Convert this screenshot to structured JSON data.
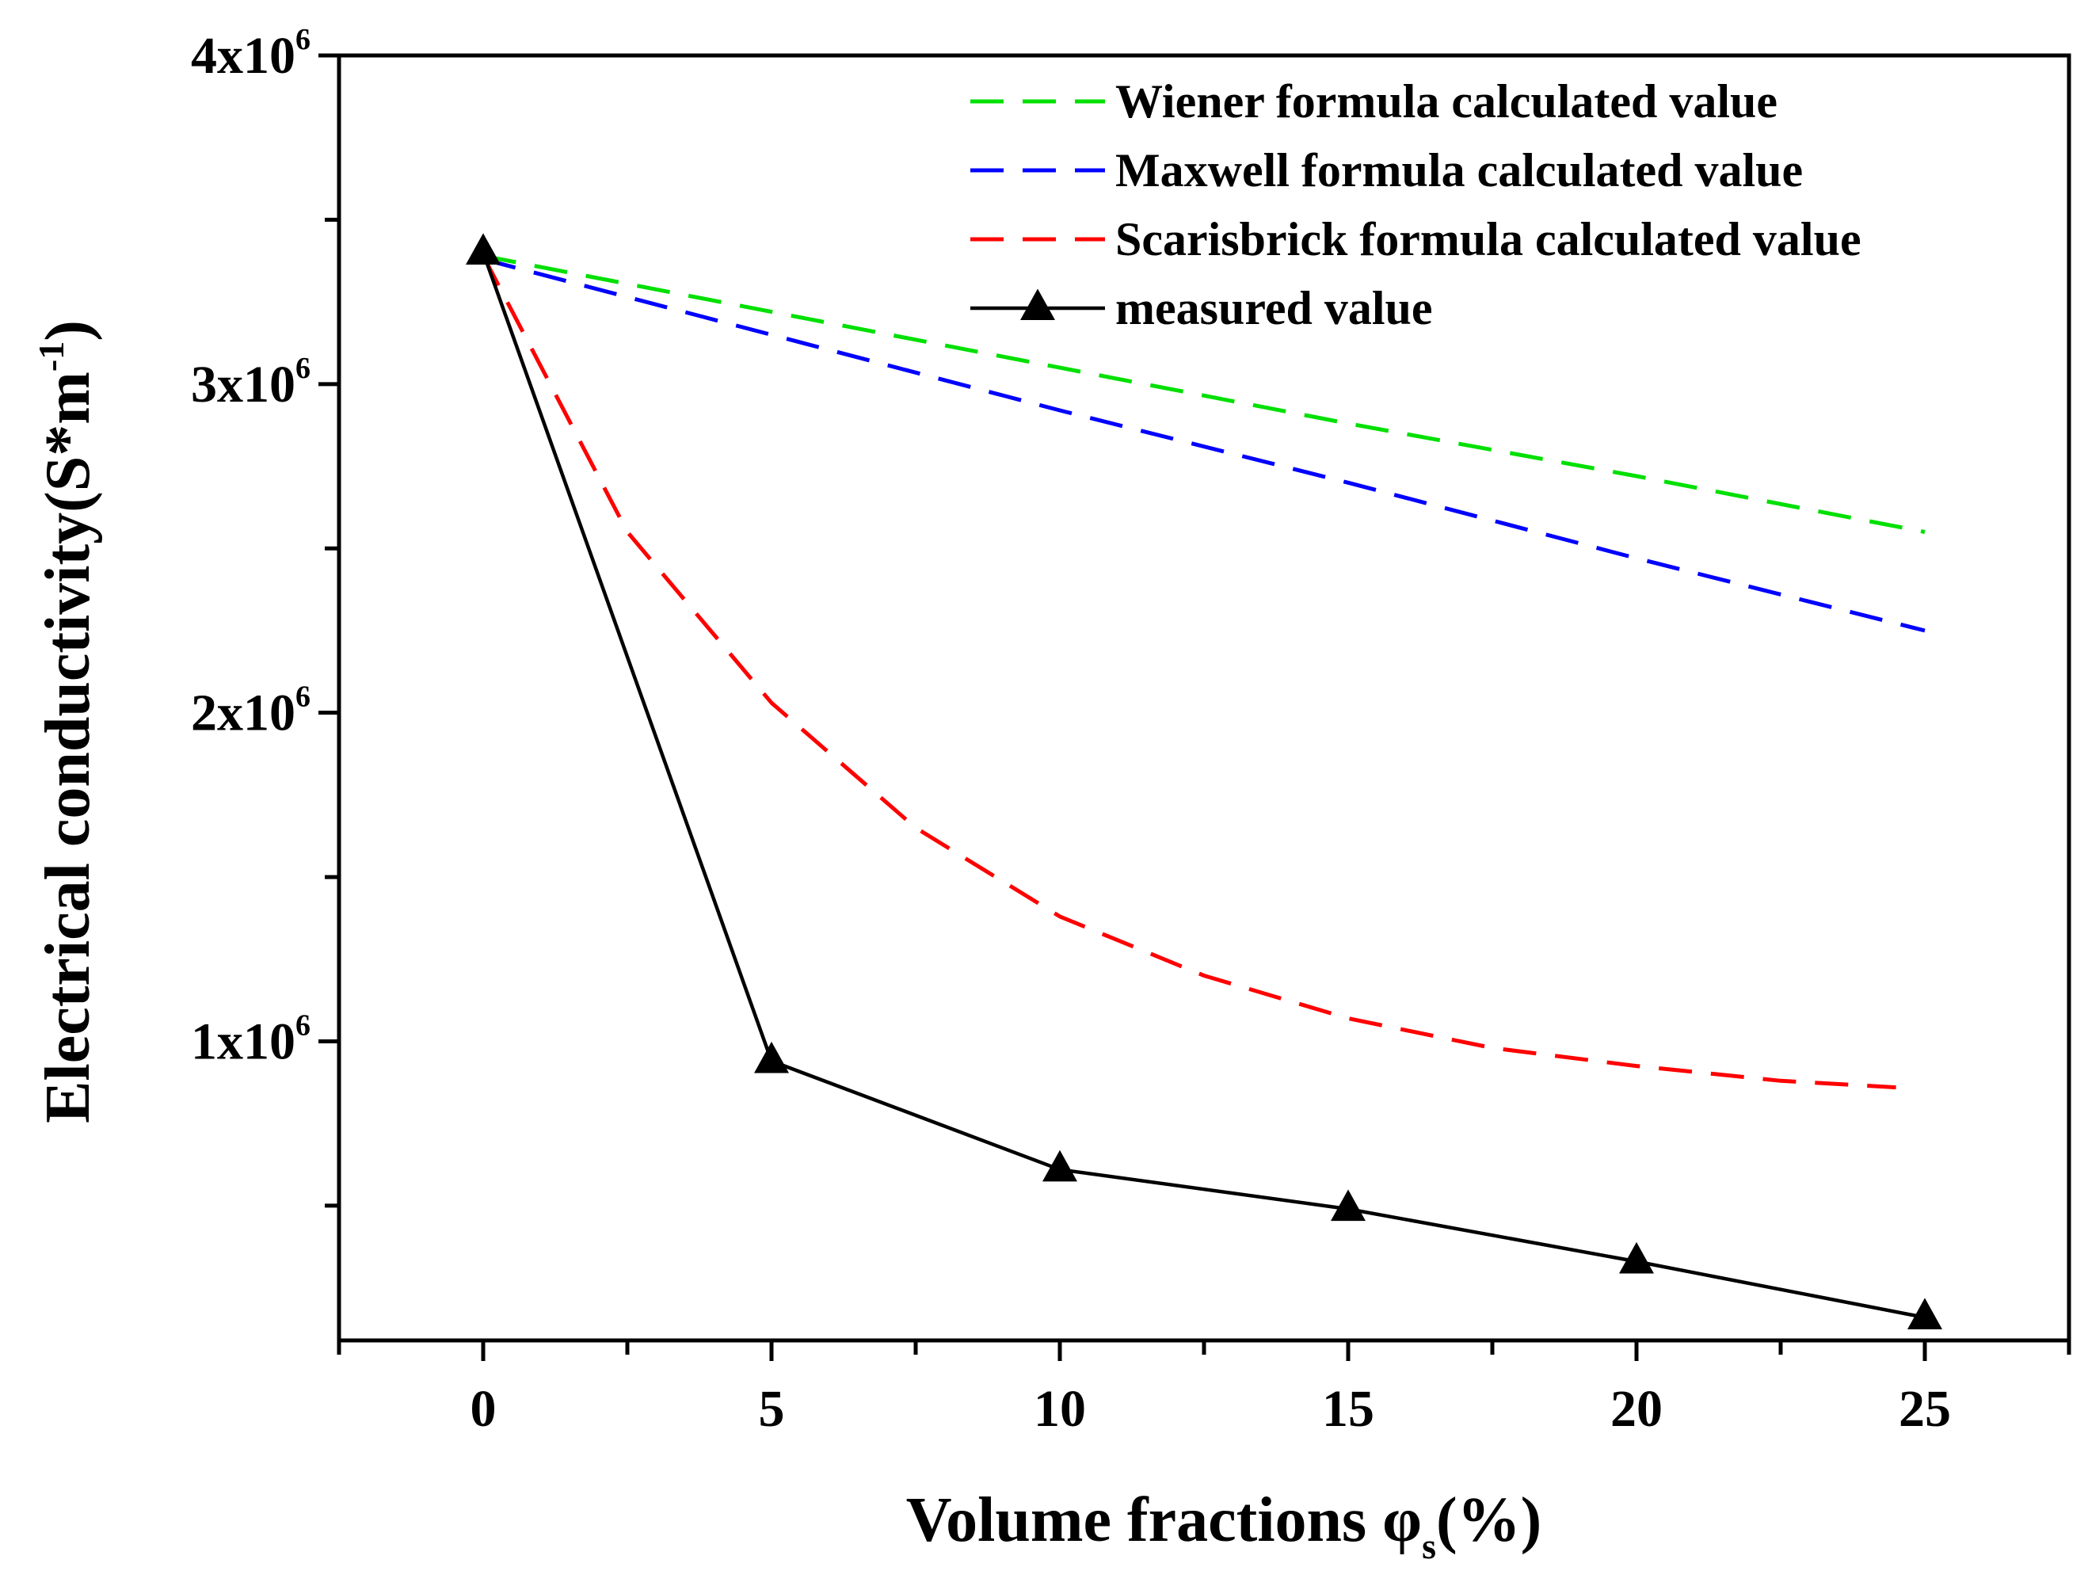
{
  "chart_data": {
    "type": "line",
    "title": "",
    "xlabel": "Volume fractions φs(%)",
    "xlabel_parts": {
      "main": "Volume fractions φ",
      "sub": "s",
      "tail": "(%)"
    },
    "ylabel": "Electrical conductivity(S*m-1)",
    "ylabel_parts": {
      "main": "Electrical conductivity(S*m",
      "sup": "-1",
      "tail": ")"
    },
    "xlim": [
      -2.5,
      27.5
    ],
    "ylim": [
      90000,
      4000000
    ],
    "x_ticks": [
      0,
      5,
      10,
      15,
      20,
      25
    ],
    "x_tick_labels": [
      "0",
      "5",
      "10",
      "15",
      "20",
      "25"
    ],
    "y_ticks": [
      1000000,
      2000000,
      3000000,
      4000000
    ],
    "y_tick_labels": [
      {
        "base": "1x10",
        "exp": "6"
      },
      {
        "base": "2x10",
        "exp": "6"
      },
      {
        "base": "3x10",
        "exp": "6"
      },
      {
        "base": "4x10",
        "exp": "6"
      }
    ],
    "legend_position": "top-right",
    "grid": false,
    "series": [
      {
        "name": "Wiener formula calculated value",
        "color": "#00e000",
        "style": "dashed",
        "marker": "none",
        "x": [
          0,
          5,
          10,
          15,
          20,
          25
        ],
        "values": [
          3390000,
          3220000,
          3050000,
          2880000,
          2720000,
          2550000
        ]
      },
      {
        "name": "Maxwell formula calculated value",
        "color": "#0000ff",
        "style": "dashed",
        "marker": "none",
        "x": [
          0,
          5,
          10,
          15,
          20,
          25
        ],
        "values": [
          3380000,
          3150000,
          2920000,
          2700000,
          2470000,
          2250000
        ]
      },
      {
        "name": "Scarisbrick formula calculated value",
        "color": "#ff0000",
        "style": "dashed",
        "marker": "none",
        "x": [
          0,
          2.5,
          5,
          7.5,
          10,
          12.5,
          15,
          17.5,
          20,
          22.5,
          24.5
        ],
        "values": [
          3390000,
          2550000,
          2030000,
          1650000,
          1380000,
          1200000,
          1070000,
          980000,
          925000,
          880000,
          860000
        ]
      },
      {
        "name": "measured value",
        "color": "#000000",
        "style": "solid",
        "marker": "triangle",
        "x": [
          0,
          5,
          10,
          15,
          20,
          25
        ],
        "values": [
          3400000,
          940000,
          610000,
          490000,
          330000,
          160000
        ]
      }
    ]
  }
}
